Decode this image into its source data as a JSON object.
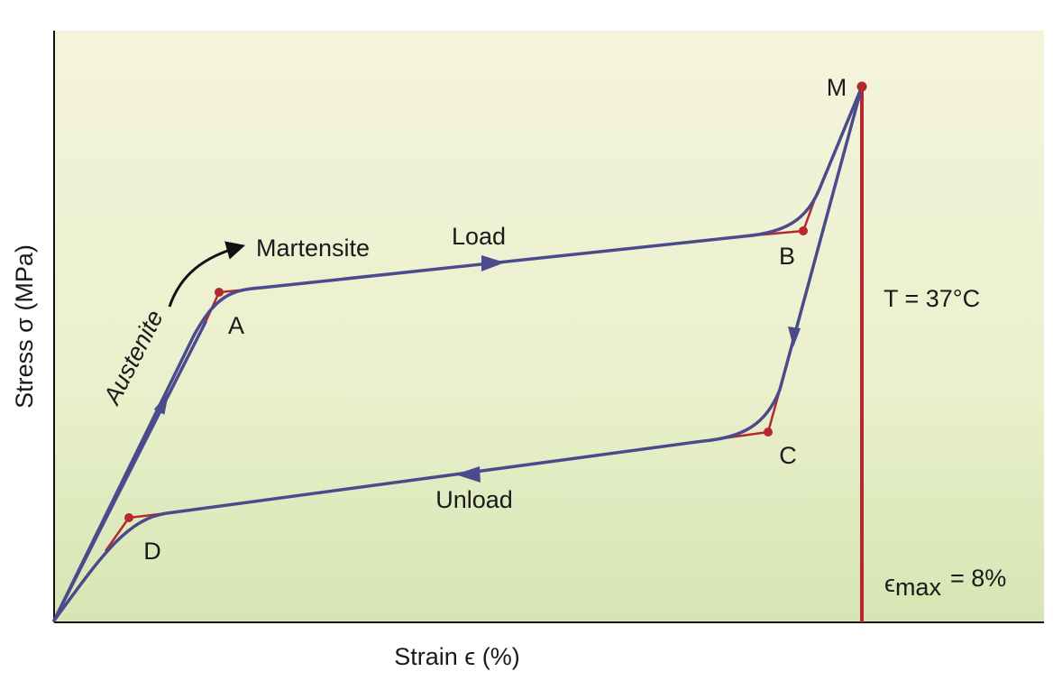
{
  "axes": {
    "x_label": "Strain ϵ (%)",
    "y_label": "Stress σ (MPa)"
  },
  "phases": {
    "start": "Austenite",
    "end": "Martensite"
  },
  "curve_labels": {
    "load": "Load",
    "unload": "Unload"
  },
  "points": {
    "A": "A",
    "B": "B",
    "C": "C",
    "D": "D",
    "M": "M"
  },
  "annotations": {
    "temperature": "T = 37°C",
    "strain_max_symbol": "ϵ",
    "strain_max_sub": "max",
    "strain_max_value": "= 8%"
  },
  "colors": {
    "curve": "#4a4a8c",
    "marker": "#b5282e",
    "bg_top": "#f3f3db",
    "bg_bottom": "#d9e7b6",
    "axis": "#111111"
  }
}
